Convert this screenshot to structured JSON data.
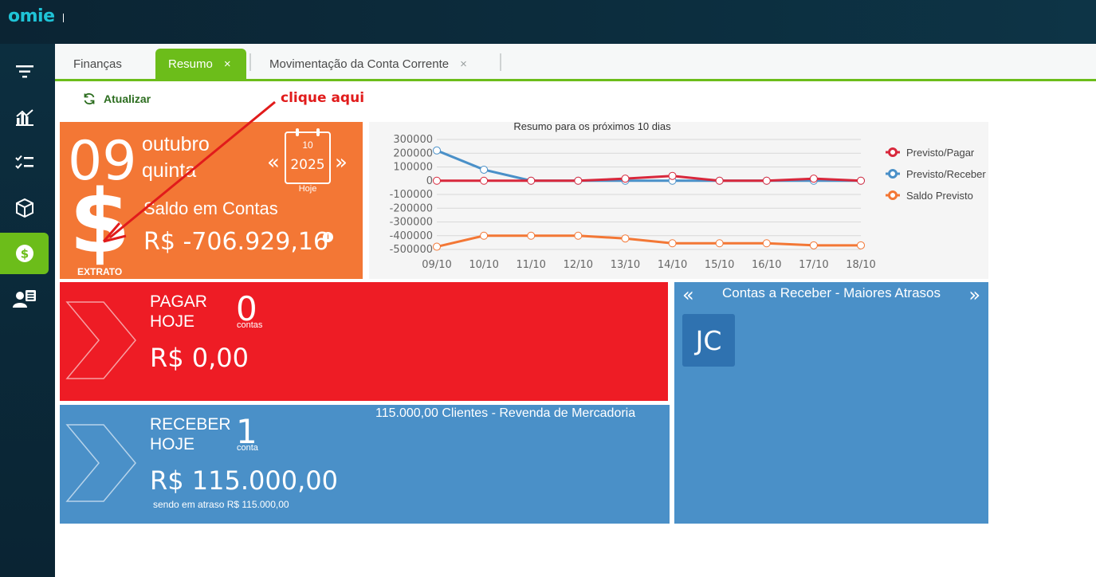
{
  "app": {
    "logo": "omie"
  },
  "sidebar": {
    "items": [
      {
        "name": "filter"
      },
      {
        "name": "chart"
      },
      {
        "name": "tasks"
      },
      {
        "name": "box"
      },
      {
        "name": "finance",
        "active": true
      },
      {
        "name": "contacts"
      }
    ]
  },
  "tabs": [
    {
      "label": "Finanças"
    },
    {
      "label": "Resumo",
      "close": "×"
    },
    {
      "label": "Movimentação da Conta Corrente",
      "close": "×"
    }
  ],
  "toolbar": {
    "refresh_label": "Atualizar"
  },
  "annotation": {
    "text": "clique aqui"
  },
  "date_tile": {
    "day": "09",
    "month": "outubro",
    "weekday": "quinta",
    "cal_month": "10",
    "cal_year": "2025",
    "today_label": "Hoje",
    "prev": "«",
    "next": "»",
    "balance_label": "Saldo em Contas",
    "balance_value": "R$ -706.929,16",
    "info": "i",
    "dollar_sign": "$",
    "extrato_label": "EXTRATO"
  },
  "chart_data": {
    "type": "line",
    "title": "Resumo para os próximos 10 dias",
    "categories": [
      "09/10",
      "10/10",
      "11/10",
      "12/10",
      "13/10",
      "14/10",
      "15/10",
      "16/10",
      "17/10",
      "18/10"
    ],
    "y_ticks": [
      "300000",
      "200000",
      "100000",
      "0",
      "-100000",
      "-200000",
      "-300000",
      "-400000",
      "-500000"
    ],
    "ylim": [
      -500000,
      300000
    ],
    "series": [
      {
        "name": "Previsto/Pagar",
        "color": "#d8283c",
        "values": [
          0,
          0,
          0,
          0,
          15000,
          35000,
          0,
          0,
          15000,
          0
        ]
      },
      {
        "name": "Previsto/Receber",
        "color": "#4a90c8",
        "values": [
          220000,
          80000,
          0,
          0,
          0,
          0,
          0,
          0,
          0,
          0
        ]
      },
      {
        "name": "Saldo Previsto",
        "color": "#f37735",
        "values": [
          -480000,
          -400000,
          -400000,
          -400000,
          -420000,
          -455000,
          -455000,
          -455000,
          -470000,
          -470000
        ]
      }
    ],
    "legend_position": "right"
  },
  "pagar_tile": {
    "label_line1": "PAGAR",
    "label_line2": "HOJE",
    "count": "0",
    "count_label": "contas",
    "value": "R$ 0,00"
  },
  "receber_tile": {
    "label_line1": "RECEBER",
    "label_line2": "HOJE",
    "count": "1",
    "count_label": "conta",
    "value": "R$ 115.000,00",
    "sub": "sendo em atraso R$ 115.000,00",
    "top_item": "115.000,00 Clientes - Revenda de Mercadoria"
  },
  "atrasos_tile": {
    "title": "Contas a Receber - Maiores Atrasos",
    "prev": "«",
    "next": "»",
    "avatar": "JC"
  }
}
